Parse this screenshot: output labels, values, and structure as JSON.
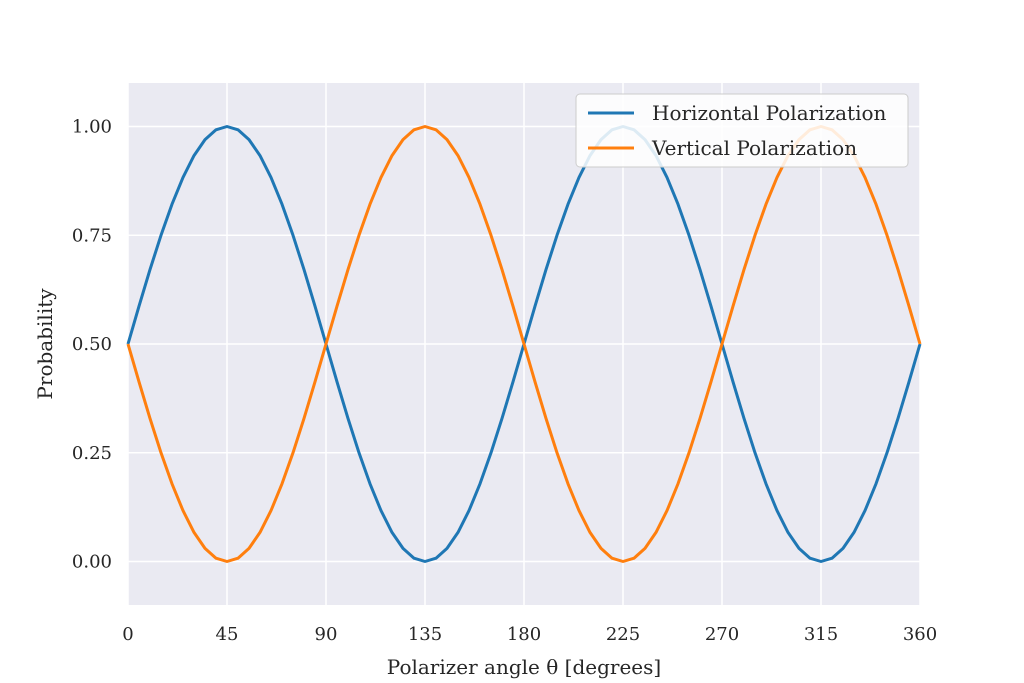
{
  "chart_data": {
    "type": "line",
    "title": "",
    "xlabel": "Polarizer angle θ [degrees]",
    "ylabel": "Probability",
    "xlim": [
      0,
      360
    ],
    "ylim": [
      -0.1,
      1.1
    ],
    "xticks": [
      0,
      45,
      90,
      135,
      180,
      225,
      270,
      315,
      360
    ],
    "xtick_labels": [
      "0",
      "45",
      "90",
      "135",
      "180",
      "225",
      "270",
      "315",
      "360"
    ],
    "yticks": [
      0,
      0.25,
      0.5,
      0.75,
      1.0
    ],
    "ytick_labels": [
      "0.00",
      "0.25",
      "0.50",
      "0.75",
      "1.00"
    ],
    "grid": true,
    "legend_position": "top-right",
    "x": [
      0,
      5,
      10,
      15,
      20,
      25,
      30,
      35,
      40,
      45,
      50,
      55,
      60,
      65,
      70,
      75,
      80,
      85,
      90,
      95,
      100,
      105,
      110,
      115,
      120,
      125,
      130,
      135,
      140,
      145,
      150,
      155,
      160,
      165,
      170,
      175,
      180,
      185,
      190,
      195,
      200,
      205,
      210,
      215,
      220,
      225,
      230,
      235,
      240,
      245,
      250,
      255,
      260,
      265,
      270,
      275,
      280,
      285,
      290,
      295,
      300,
      305,
      310,
      315,
      320,
      325,
      330,
      335,
      340,
      345,
      350,
      355,
      360
    ],
    "series": [
      {
        "name": "Horizontal Polarization",
        "color": "#1f77b4",
        "values": [
          0.5,
          0.5868,
          0.671,
          0.75,
          0.8214,
          0.883,
          0.933,
          0.9698,
          0.9924,
          1,
          0.9924,
          0.9698,
          0.933,
          0.883,
          0.8214,
          0.75,
          0.671,
          0.5868,
          0.5,
          0.4132,
          0.329,
          0.25,
          0.1786,
          0.117,
          0.067,
          0.0302,
          0.0076,
          0,
          0.0076,
          0.0302,
          0.067,
          0.117,
          0.1786,
          0.25,
          0.329,
          0.4132,
          0.5,
          0.5868,
          0.671,
          0.75,
          0.8214,
          0.883,
          0.933,
          0.9698,
          0.9924,
          1,
          0.9924,
          0.9698,
          0.933,
          0.883,
          0.8214,
          0.75,
          0.671,
          0.5868,
          0.5,
          0.4132,
          0.329,
          0.25,
          0.1786,
          0.117,
          0.067,
          0.0302,
          0.0076,
          0,
          0.0076,
          0.0302,
          0.067,
          0.117,
          0.1786,
          0.25,
          0.329,
          0.4132,
          0.5
        ]
      },
      {
        "name": "Vertical Polarization",
        "color": "#ff7f0e",
        "values": [
          0.5,
          0.4132,
          0.329,
          0.25,
          0.1786,
          0.117,
          0.067,
          0.0302,
          0.0076,
          0,
          0.0076,
          0.0302,
          0.067,
          0.117,
          0.1786,
          0.25,
          0.329,
          0.4132,
          0.5,
          0.5868,
          0.671,
          0.75,
          0.8214,
          0.883,
          0.933,
          0.9698,
          0.9924,
          1,
          0.9924,
          0.9698,
          0.933,
          0.883,
          0.8214,
          0.75,
          0.671,
          0.5868,
          0.5,
          0.4132,
          0.329,
          0.25,
          0.1786,
          0.117,
          0.067,
          0.0302,
          0.0076,
          0,
          0.0076,
          0.0302,
          0.067,
          0.117,
          0.1786,
          0.25,
          0.329,
          0.4132,
          0.5,
          0.5868,
          0.671,
          0.75,
          0.8214,
          0.883,
          0.933,
          0.9698,
          0.9924,
          1,
          0.9924,
          0.9698,
          0.933,
          0.883,
          0.8214,
          0.75,
          0.671,
          0.5868,
          0.5
        ]
      }
    ],
    "background_color": "#eaeaf2"
  }
}
